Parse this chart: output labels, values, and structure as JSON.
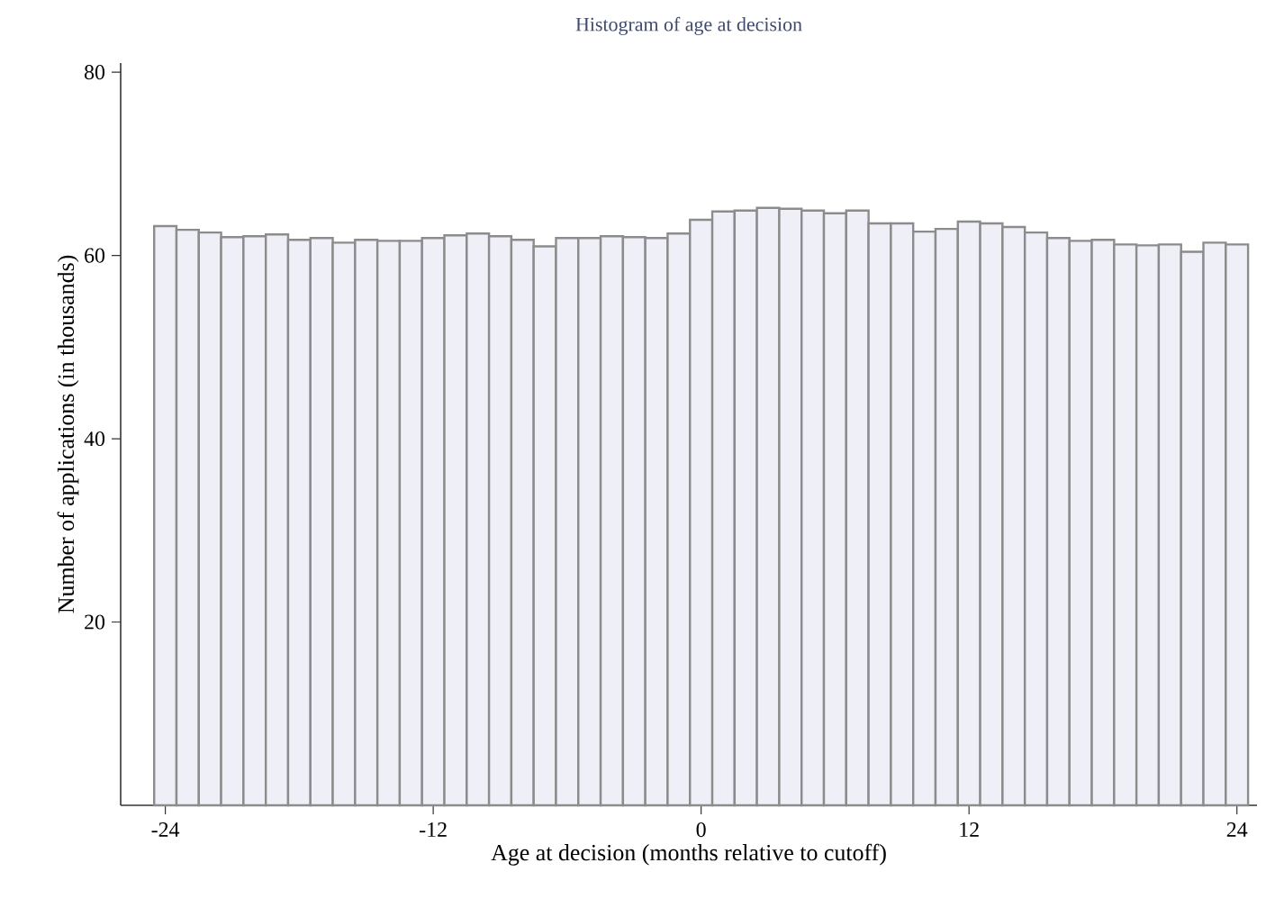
{
  "chart_data": {
    "type": "histogram",
    "title": "Histogram of age at decision",
    "xlabel": "Age at decision (months relative to cutoff)",
    "ylabel": "Number of applications (in thousands)",
    "bins": [
      -24.5,
      -23.5,
      -22.5,
      -21.5,
      -20.5,
      -19.5,
      -18.5,
      -17.5,
      -16.5,
      -15.5,
      -14.5,
      -13.5,
      -12.5,
      -11.5,
      -10.5,
      -9.5,
      -8.5,
      -7.5,
      -6.5,
      -5.5,
      -4.5,
      -3.5,
      -2.5,
      -1.5,
      -0.5,
      0.5,
      1.5,
      2.5,
      3.5,
      4.5,
      5.5,
      6.5,
      7.5,
      8.5,
      9.5,
      10.5,
      11.5,
      12.5,
      13.5,
      14.5,
      15.5,
      16.5,
      17.5,
      18.5,
      19.5,
      20.5,
      21.5,
      22.5,
      23.5,
      24.5
    ],
    "values": [
      63.2,
      62.8,
      62.5,
      62.0,
      62.1,
      62.3,
      61.7,
      61.9,
      61.4,
      61.7,
      61.6,
      61.6,
      61.9,
      62.2,
      62.4,
      62.1,
      61.7,
      61.0,
      61.9,
      61.9,
      62.1,
      62.0,
      61.9,
      62.4,
      63.9,
      64.8,
      64.9,
      65.2,
      65.1,
      64.9,
      64.6,
      64.9,
      63.5,
      63.5,
      62.6,
      62.9,
      63.7,
      63.5,
      63.1,
      62.5,
      61.9,
      61.6,
      61.7,
      61.2,
      61.1,
      61.2,
      60.4,
      61.4,
      61.2
    ],
    "color": "#efeff8",
    "xlim": [
      -26,
      24.9
    ],
    "ylim": [
      0,
      81
    ],
    "xticks": [
      -24,
      -12,
      0,
      12,
      24
    ],
    "yticks": [
      20,
      40,
      60,
      80
    ],
    "grid": false
  }
}
